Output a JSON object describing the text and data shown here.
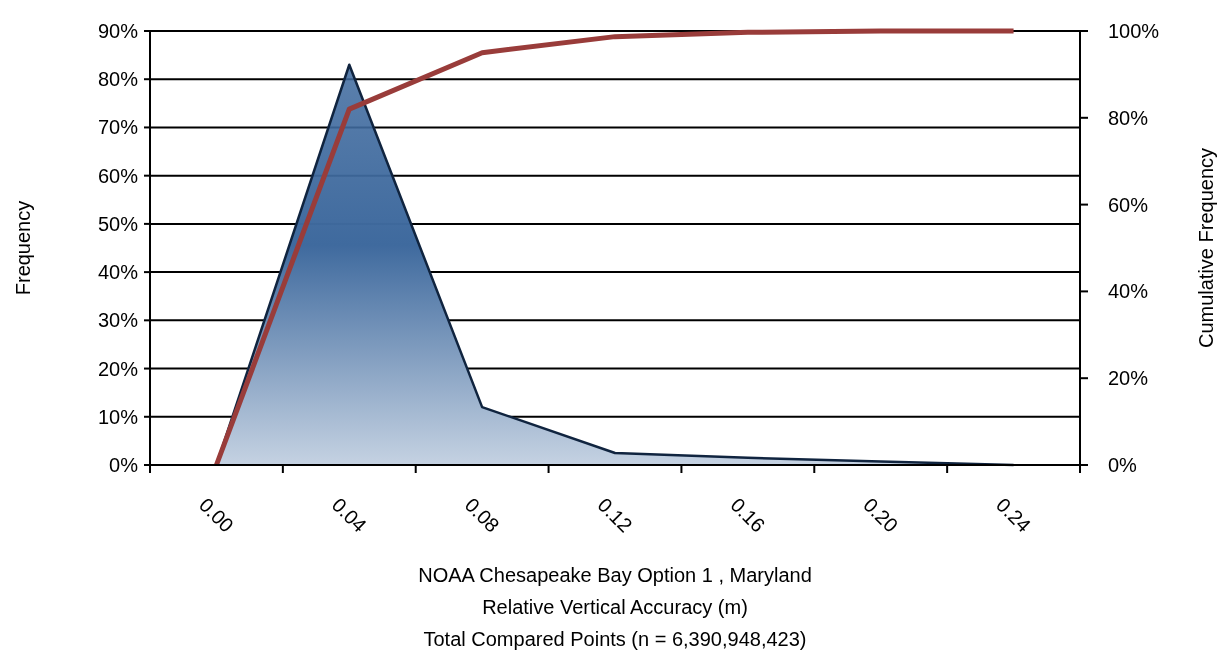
{
  "chart_data": {
    "type": "area",
    "xlabel": "NOAA Chesapeake Bay Option 1 , Maryland\nRelative Vertical Accuracy (m)\nTotal Compared Points (n = 6,390,948,423)",
    "ylabel": "Frequency",
    "y2label": "Cumulative Frequency",
    "categories": [
      "0.00",
      "0.04",
      "0.08",
      "0.12",
      "0.16",
      "0.20",
      "0.24"
    ],
    "series": [
      {
        "color": "#3f6a9e",
        "values": [
          0,
          83,
          12,
          2.5,
          1.5,
          0.7,
          0
        ]
      },
      {
        "type": "line",
        "axis": "y2",
        "color": "#993c3a",
        "values": [
          0,
          82,
          95,
          98.7,
          99.7,
          100,
          100
        ]
      }
    ],
    "ylim": [
      0,
      90
    ],
    "yticks": [
      {
        "value": 0,
        "label": "0%"
      },
      {
        "value": 10,
        "label": "10%"
      },
      {
        "value": 20,
        "label": "20%"
      },
      {
        "value": 30,
        "label": "30%"
      },
      {
        "value": 40,
        "label": "40%"
      },
      {
        "value": 50,
        "label": "50%"
      },
      {
        "value": 60,
        "label": "60%"
      },
      {
        "value": 70,
        "label": "70%"
      },
      {
        "value": 80,
        "label": "80%"
      },
      {
        "value": 90,
        "label": "90%"
      }
    ],
    "y2lim": [
      0,
      100
    ],
    "y2ticks": [
      {
        "value": 0,
        "label": "0%"
      },
      {
        "value": 20,
        "label": "20%"
      },
      {
        "value": 40,
        "label": "40%"
      },
      {
        "value": 60,
        "label": "60%"
      },
      {
        "value": 80,
        "label": "80%"
      },
      {
        "value": 100,
        "label": "100%"
      }
    ],
    "grid": "y",
    "marker": "none",
    "line_style": "solid"
  }
}
